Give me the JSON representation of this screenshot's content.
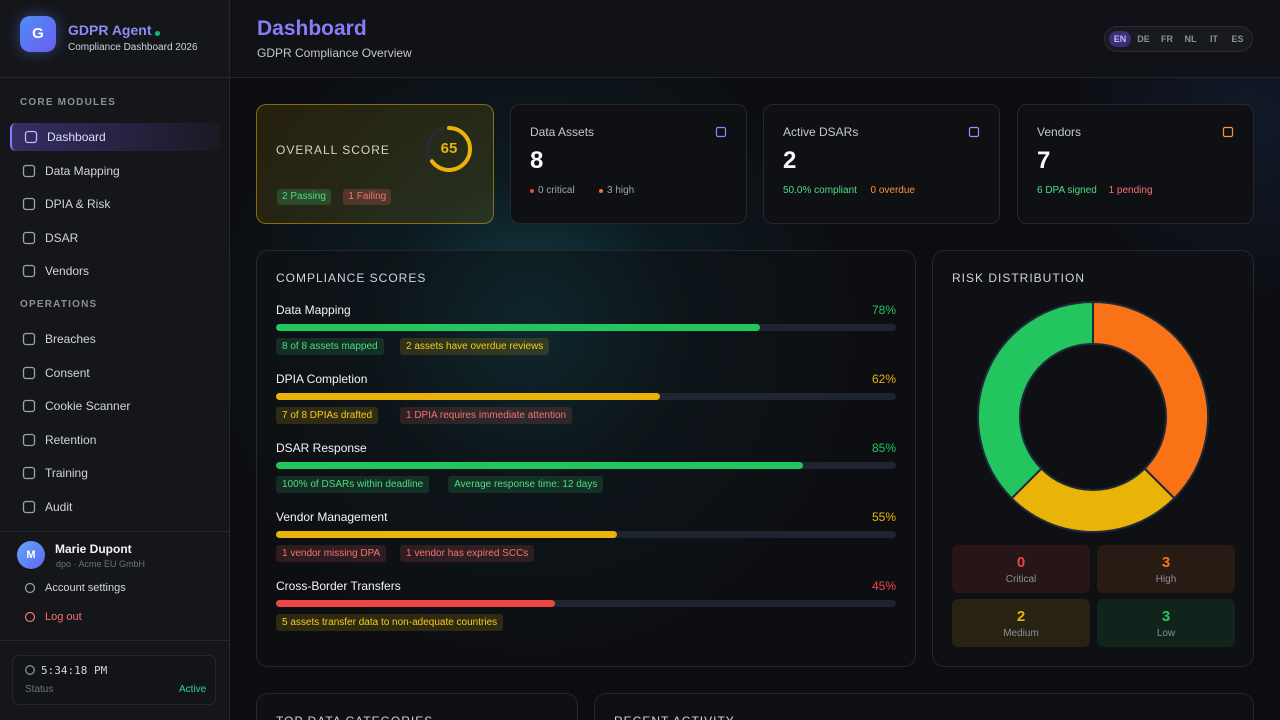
{
  "sidebar": {
    "brand": {
      "logo": "G",
      "title": "GDPR Agent",
      "subtitle": "Compliance Dashboard 2026"
    },
    "sections": [
      {
        "title": "CORE MODULES",
        "items": [
          "Dashboard",
          "Data Mapping",
          "DPIA & Risk",
          "DSAR",
          "Vendors"
        ]
      },
      {
        "title": "OPERATIONS",
        "items": [
          "Breaches",
          "Consent",
          "Cookie Scanner",
          "Retention",
          "Training",
          "Audit"
        ]
      }
    ],
    "user": {
      "avatar": "M",
      "name": "Marie Dupont",
      "role": "dpo · Acme EU GmbH"
    },
    "account_links": [
      "Account settings",
      "Log out"
    ],
    "status": {
      "time": "5:34:18 PM",
      "label": "Status",
      "value": "Active"
    }
  },
  "header": {
    "title": "Dashboard",
    "subtitle": "GDPR Compliance Overview",
    "languages": [
      "EN",
      "DE",
      "FR",
      "NL",
      "IT",
      "ES"
    ]
  },
  "overall_score": {
    "title": "OVERALL SCORE",
    "value": 65,
    "color": "#eab308",
    "badges": [
      {
        "text": "2 Passing",
        "color": "#4ade80"
      },
      {
        "text": "1 Failing",
        "color": "#f87171"
      }
    ]
  },
  "stat_cards": [
    {
      "title": "Data Assets",
      "value": 8,
      "icon_color": "#818cf8",
      "dot": true,
      "notes": [
        {
          "text": "0 critical",
          "color": "#ef4444"
        },
        {
          "text": "3 high",
          "color": "#f97316"
        }
      ]
    },
    {
      "title": "Active DSARs",
      "value": 2,
      "icon_color": "#a78bfa",
      "dot": false,
      "notes": [
        {
          "text": "50.0% compliant",
          "color": "#4ade80"
        },
        {
          "text": "0 overdue",
          "color": "#fb923c"
        }
      ]
    },
    {
      "title": "Vendors",
      "value": 7,
      "icon_color": "#fb923c",
      "dot": false,
      "notes": [
        {
          "text": "6 DPA signed",
          "color": "#4ade80"
        },
        {
          "text": "1 pending",
          "color": "#f87171"
        }
      ]
    }
  ],
  "compliance_scores": {
    "title": "COMPLIANCE SCORES",
    "items": [
      {
        "name": "Data Mapping",
        "value": 78,
        "label": "78%",
        "color": "#22c55e",
        "tags": [
          {
            "text": "8 of 8 assets mapped",
            "color": "#4ade80"
          },
          {
            "text": "2 assets have overdue reviews",
            "color": "#facc15"
          }
        ]
      },
      {
        "name": "DPIA Completion",
        "value": 62,
        "label": "62%",
        "color": "#eab308",
        "tags": [
          {
            "text": "7 of 8 DPIAs drafted",
            "color": "#facc15"
          },
          {
            "text": "1 DPIA requires immediate attention",
            "color": "#f87171"
          }
        ]
      },
      {
        "name": "DSAR Response",
        "value": 85,
        "label": "85%",
        "color": "#22c55e",
        "tags": [
          {
            "text": "100% of DSARs within deadline",
            "color": "#4ade80"
          },
          {
            "text": "Average response time: 12 days",
            "color": "#4ade80"
          }
        ]
      },
      {
        "name": "Vendor Management",
        "value": 55,
        "label": "55%",
        "color": "#eab308",
        "tags": [
          {
            "text": "1 vendor missing DPA",
            "color": "#f87171"
          },
          {
            "text": "1 vendor has expired SCCs",
            "color": "#f87171"
          }
        ]
      },
      {
        "name": "Cross-Border Transfers",
        "value": 45,
        "label": "45%",
        "color": "#ef4444",
        "tags": [
          {
            "text": "5 assets transfer data to non-adequate countries",
            "color": "#facc15"
          }
        ]
      }
    ]
  },
  "risk_distribution": {
    "title": "RISK DISTRIBUTION",
    "segments": [
      {
        "name": "Critical",
        "value": 0,
        "color": "#ef4444"
      },
      {
        "name": "High",
        "value": 3,
        "color": "#f97316"
      },
      {
        "name": "Medium",
        "value": 2,
        "color": "#eab308"
      },
      {
        "name": "Low",
        "value": 3,
        "color": "#22c55e"
      }
    ]
  },
  "bottom_panels": [
    "TOP DATA CATEGORIES",
    "RECENT ACTIVITY"
  ]
}
